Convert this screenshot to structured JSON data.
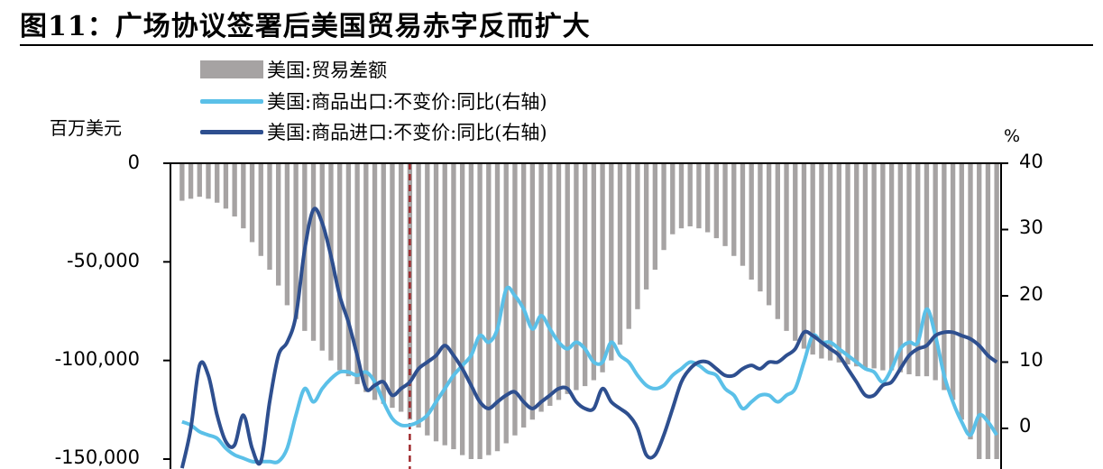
{
  "title": "图11：广场协议签署后美国贸易赤字反而扩大",
  "left_unit": "百万美元",
  "right_unit": "%",
  "colors": {
    "bar": "#a6a3a3",
    "export": "#5bc0e8",
    "import": "#2e4f8f",
    "marker": "#a0282b"
  },
  "chart_data": {
    "type": "bar+line",
    "left_axis": {
      "ylim": [
        -150000,
        0
      ],
      "ticks": [
        0,
        -50000,
        -100000,
        -150000
      ],
      "tick_labels": [
        "0",
        "-50,000",
        "-100,000",
        "-150,000"
      ]
    },
    "right_axis": {
      "ylim": [
        -5,
        40
      ],
      "ticks": [
        0,
        10,
        20,
        30,
        40
      ],
      "tick_labels": [
        "0",
        "10",
        "20",
        "30",
        "40"
      ]
    },
    "legend_placement": "top",
    "bar_series": {
      "name": "美国:贸易差额",
      "values": [
        -19000,
        -18000,
        -17000,
        -18000,
        -20000,
        -23000,
        -27000,
        -33000,
        -40000,
        -47000,
        -54000,
        -62000,
        -72000,
        -79000,
        -85000,
        -90000,
        -95000,
        -100000,
        -105000,
        -108000,
        -112000,
        -116000,
        -120000,
        -122000,
        -124000,
        -126000,
        -130000,
        -134000,
        -138000,
        -141000,
        -143000,
        -145000,
        -148000,
        -150000,
        -150000,
        -148000,
        -146000,
        -142000,
        -138000,
        -134000,
        -130000,
        -126000,
        -123000,
        -120000,
        -117000,
        -115000,
        -113000,
        -110000,
        -106000,
        -100000,
        -92000,
        -84000,
        -74000,
        -64000,
        -54000,
        -44000,
        -36000,
        -33000,
        -32000,
        -33000,
        -35000,
        -38000,
        -42000,
        -47000,
        -52000,
        -59000,
        -65000,
        -72000,
        -79000,
        -85000,
        -90000,
        -94000,
        -97000,
        -99000,
        -100000,
        -101000,
        -102000,
        -103000,
        -104000,
        -104000,
        -105000,
        -105000,
        -106000,
        -107000,
        -108000,
        -108000,
        -110000,
        -115000,
        -120000,
        -130000,
        -140000,
        -150000,
        -150000,
        -150000
      ]
    },
    "line_series": [
      {
        "name": "美国:商品出口:不变价:同比(右轴)",
        "axis": "right",
        "values": [
          1,
          0.5,
          -0.5,
          -1,
          -1.5,
          -3,
          -4,
          -4.5,
          -5,
          -5,
          -5,
          -5,
          -3,
          2,
          6,
          4,
          6,
          7.5,
          8.5,
          8.5,
          8,
          8.5,
          7,
          4,
          1.5,
          0.5,
          0.5,
          1,
          2,
          4,
          6,
          8,
          9.5,
          11,
          14,
          13,
          15,
          21,
          20,
          18,
          15,
          17,
          15,
          13,
          12,
          13,
          12,
          10,
          10,
          13,
          11,
          10,
          8,
          6.5,
          6,
          6.5,
          8,
          9,
          10,
          9.5,
          8.5,
          8,
          6,
          5,
          3,
          4,
          5,
          5,
          4,
          5,
          6,
          10,
          14,
          13,
          13,
          12,
          11,
          10,
          9,
          8.5,
          7,
          9,
          12,
          13,
          13,
          18,
          14,
          8,
          4,
          1,
          -1,
          2,
          1,
          -1
        ]
      },
      {
        "name": "美国:商品进口:不变价:同比(右轴)",
        "axis": "right",
        "values": [
          -6,
          0,
          9.5,
          8,
          2,
          -2,
          -2.5,
          2,
          -3,
          -5,
          4,
          11,
          13,
          17,
          27,
          33,
          31,
          26,
          20,
          16,
          11,
          6,
          6.5,
          7,
          5,
          6,
          7,
          9,
          10,
          11,
          12.5,
          11,
          9,
          6.5,
          4,
          3,
          4,
          5,
          5.5,
          4,
          3,
          4,
          5,
          6,
          6,
          4,
          3,
          3,
          6,
          4,
          3,
          2,
          0,
          -4,
          -4,
          -1,
          3,
          7,
          9,
          10,
          10,
          9,
          8,
          8,
          9,
          9.5,
          9,
          10,
          10,
          11,
          12,
          14.5,
          14,
          13,
          12,
          11,
          9,
          7,
          5,
          5,
          6.5,
          7,
          9,
          11,
          12,
          12.5,
          14,
          14.5,
          14.5,
          14,
          13.5,
          12.5,
          11,
          10
        ]
      }
    ],
    "vertical_marker": {
      "position_index": 26,
      "style": "dashed"
    }
  }
}
